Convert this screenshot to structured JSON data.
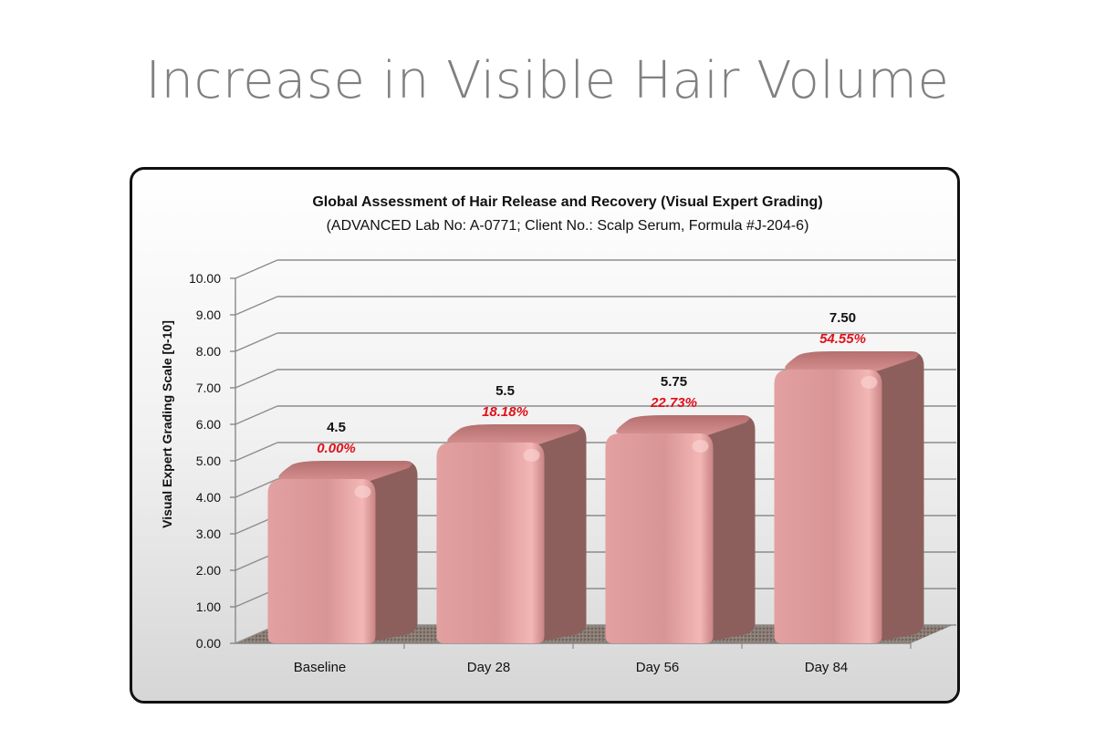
{
  "page": {
    "heading": "Increase in Visible Hair Volume"
  },
  "chart_data": {
    "type": "bar",
    "title": "Global Assessment of Hair Release and Recovery (Visual Expert Grading)",
    "subtitle": "(ADVANCED Lab No: A-0771; Client No.: Scalp Serum, Formula #J-204-6)",
    "ylabel": "Visual Expert Grading Scale [0-10]",
    "xlabel": "",
    "ylim": [
      0,
      10
    ],
    "yticks": [
      "0.00",
      "1.00",
      "2.00",
      "3.00",
      "4.00",
      "5.00",
      "6.00",
      "7.00",
      "8.00",
      "9.00",
      "10.00"
    ],
    "categories": [
      "Baseline",
      "Day 28",
      "Day 56",
      "Day 84"
    ],
    "values": [
      4.5,
      5.5,
      5.75,
      7.5
    ],
    "value_labels": [
      "4.5",
      "5.5",
      "5.75",
      "7.50"
    ],
    "percent_labels": [
      "0.00%",
      "18.18%",
      "22.73%",
      "54.55%"
    ],
    "grid": true,
    "legend": "none",
    "colors": {
      "bar_front": "#d99595",
      "bar_side": "#8c5f5d",
      "bar_top": "#c98080",
      "percent_text": "#e0101a",
      "gridline": "#8c8c8c"
    }
  }
}
